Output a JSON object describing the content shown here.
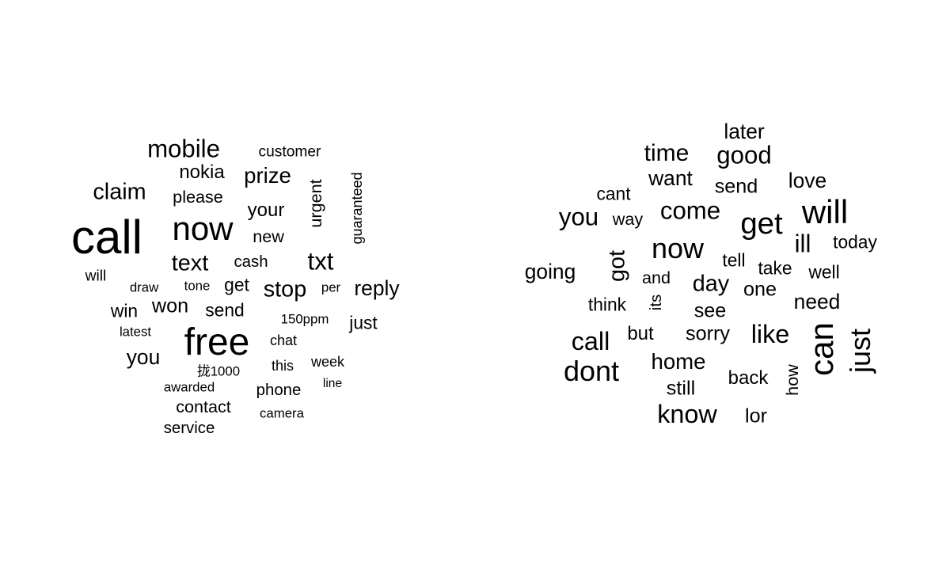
{
  "chart_data": [
    {
      "type": "wordcloud",
      "words": [
        {
          "text": "call",
          "size": 5
        },
        {
          "text": "free",
          "size": 4
        },
        {
          "text": "now",
          "size": 3.5
        },
        {
          "text": "mobile",
          "size": 2.6
        },
        {
          "text": "txt",
          "size": 2.6
        },
        {
          "text": "claim",
          "size": 2.4
        },
        {
          "text": "text",
          "size": 2.4
        },
        {
          "text": "stop",
          "size": 2.4
        },
        {
          "text": "prize",
          "size": 2.3
        },
        {
          "text": "reply",
          "size": 2.2
        },
        {
          "text": "you",
          "size": 2.2
        },
        {
          "text": "won",
          "size": 2.1
        },
        {
          "text": "your",
          "size": 2
        },
        {
          "text": "nokia",
          "size": 2
        },
        {
          "text": "urgent",
          "size": 1.8
        },
        {
          "text": "please",
          "size": 1.8
        },
        {
          "text": "send",
          "size": 1.9
        },
        {
          "text": "get",
          "size": 1.9
        },
        {
          "text": "win",
          "size": 1.9
        },
        {
          "text": "just",
          "size": 1.9
        },
        {
          "text": "contact",
          "size": 1.8
        },
        {
          "text": "new",
          "size": 1.8
        },
        {
          "text": "cash",
          "size": 1.7
        },
        {
          "text": "customer",
          "size": 1.6
        },
        {
          "text": "phone",
          "size": 1.7
        },
        {
          "text": "service",
          "size": 1.7
        },
        {
          "text": "guaranteed",
          "size": 1.5
        },
        {
          "text": "chat",
          "size": 1.5
        },
        {
          "text": "this",
          "size": 1.5
        },
        {
          "text": "week",
          "size": 1.5
        },
        {
          "text": "will",
          "size": 1.6
        },
        {
          "text": "per",
          "size": 1.4
        },
        {
          "text": "tone",
          "size": 1.4
        },
        {
          "text": "150ppm",
          "size": 1.4
        },
        {
          "text": "latest",
          "size": 1.4
        },
        {
          "text": "draw",
          "size": 1.4
        },
        {
          "text": "awarded",
          "size": 1.4
        },
        {
          "text": "拢1000",
          "size": 1.4
        },
        {
          "text": "camera",
          "size": 1.4
        },
        {
          "text": "line",
          "size": 1.3
        }
      ]
    },
    {
      "type": "wordcloud",
      "words": [
        {
          "text": "will",
          "size": 3.5
        },
        {
          "text": "get",
          "size": 3.2
        },
        {
          "text": "now",
          "size": 3
        },
        {
          "text": "can",
          "size": 3.5
        },
        {
          "text": "just",
          "size": 3
        },
        {
          "text": "dont",
          "size": 3
        },
        {
          "text": "know",
          "size": 2.7
        },
        {
          "text": "you",
          "size": 2.6
        },
        {
          "text": "good",
          "size": 2.6
        },
        {
          "text": "come",
          "size": 2.6
        },
        {
          "text": "like",
          "size": 2.7
        },
        {
          "text": "call",
          "size": 2.7
        },
        {
          "text": "time",
          "size": 2.5
        },
        {
          "text": "got",
          "size": 2.4
        },
        {
          "text": "ill",
          "size": 2.6
        },
        {
          "text": "day",
          "size": 2.4
        },
        {
          "text": "home",
          "size": 2.3
        },
        {
          "text": "want",
          "size": 2.2
        },
        {
          "text": "later",
          "size": 2.2
        },
        {
          "text": "love",
          "size": 2.2
        },
        {
          "text": "need",
          "size": 2.2
        },
        {
          "text": "going",
          "size": 2.2
        },
        {
          "text": "send",
          "size": 2.1
        },
        {
          "text": "one",
          "size": 2.1
        },
        {
          "text": "sorry",
          "size": 2.1
        },
        {
          "text": "see",
          "size": 2.1
        },
        {
          "text": "still",
          "size": 2.1
        },
        {
          "text": "lor",
          "size": 2.1
        },
        {
          "text": "back",
          "size": 2
        },
        {
          "text": "but",
          "size": 2
        },
        {
          "text": "think",
          "size": 1.9
        },
        {
          "text": "today",
          "size": 1.9
        },
        {
          "text": "take",
          "size": 1.9
        },
        {
          "text": "tell",
          "size": 1.9
        },
        {
          "text": "well",
          "size": 1.9
        },
        {
          "text": "cant",
          "size": 1.9
        },
        {
          "text": "way",
          "size": 1.8
        },
        {
          "text": "and",
          "size": 1.8
        },
        {
          "text": "how",
          "size": 1.8
        },
        {
          "text": "its",
          "size": 1.7
        }
      ]
    }
  ]
}
